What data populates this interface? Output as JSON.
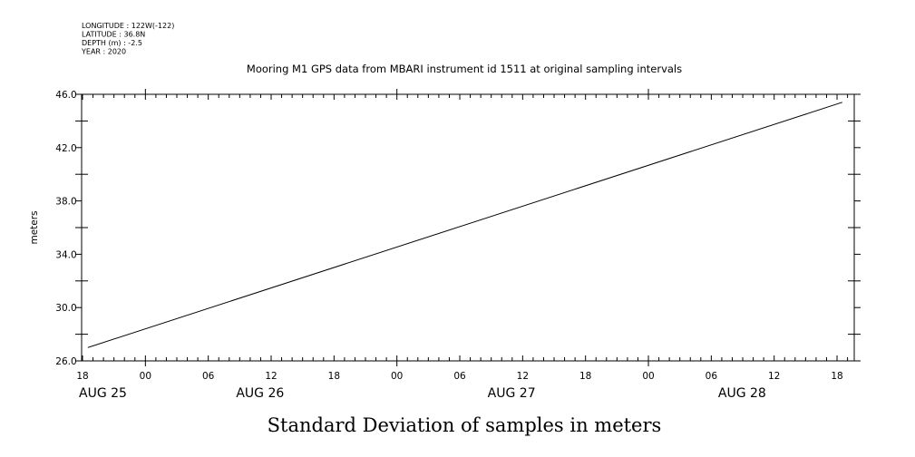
{
  "header": {
    "metadata": [
      "LONGITUDE : 122W(-122)",
      "LATITUDE : 36.8N",
      "DEPTH (m) : -2.5",
      "YEAR : 2020"
    ]
  },
  "chart_data": {
    "type": "line",
    "title": "Mooring M1 GPS data from MBARI instrument id 1511 at original sampling intervals",
    "ylabel": "meters",
    "xlabel": "Standard Deviation of samples in meters",
    "ylim": [
      26.0,
      46.0
    ],
    "yticks": [
      "26.0",
      "30.0",
      "34.0",
      "38.0",
      "42.0",
      "46.0"
    ],
    "xlim_hours": [
      0,
      73
    ],
    "x_hour_labels": [
      "18",
      "00",
      "06",
      "12",
      "18",
      "00",
      "06",
      "12",
      "18",
      "00",
      "06",
      "12",
      "18"
    ],
    "x_date_labels": [
      {
        "label": "AUG 25",
        "hour": 0
      },
      {
        "label": "AUG 26",
        "hour": 15
      },
      {
        "label": "AUG 27",
        "hour": 39
      },
      {
        "label": "AUG 28",
        "hour": 61
      }
    ],
    "series": [
      {
        "x": [
          "2020-08-25T18:30",
          "2020-08-28T18:30"
        ],
        "values": [
          27.0,
          45.4
        ]
      }
    ],
    "grid": false,
    "line_color": "#000000"
  }
}
